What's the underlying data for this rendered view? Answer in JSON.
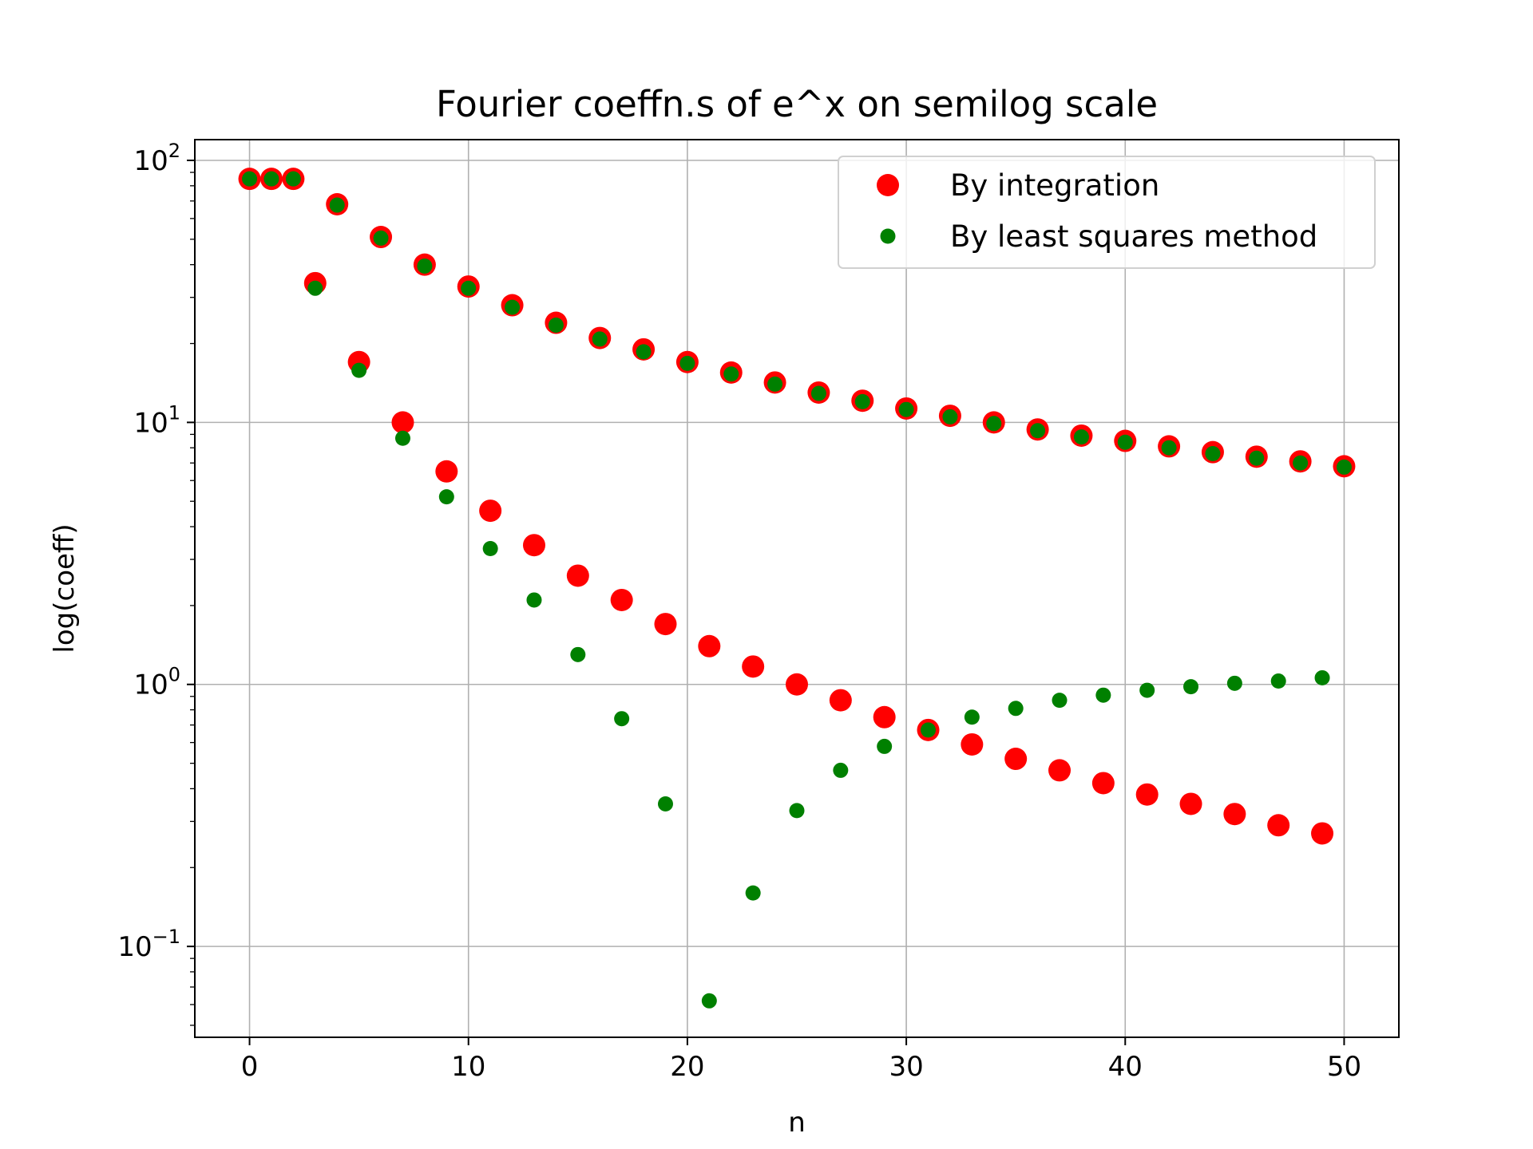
{
  "chart_data": {
    "type": "scatter",
    "title": "Fourier coeffn.s of e^x on semilog scale",
    "xlabel": "n",
    "ylabel": "log(coeff)",
    "yscale": "log",
    "xlim": [
      -2.5,
      52.5
    ],
    "ylim": [
      0.045,
      120
    ],
    "grid": true,
    "legend_position": "top-right",
    "x_ticks": [
      0,
      10,
      20,
      30,
      40,
      50
    ],
    "y_ticks": [
      {
        "value": 0.1,
        "base": "10",
        "exp": "−1"
      },
      {
        "value": 1,
        "base": "10",
        "exp": "0"
      },
      {
        "value": 10,
        "base": "10",
        "exp": "1"
      },
      {
        "value": 100,
        "base": "10",
        "exp": "2"
      }
    ],
    "series": [
      {
        "name": "By integration",
        "color": "#ff0000",
        "marker_size": "large",
        "points": [
          [
            0,
            85.0
          ],
          [
            1,
            85.0
          ],
          [
            2,
            85.0
          ],
          [
            3,
            34.0
          ],
          [
            4,
            68.0
          ],
          [
            5,
            17.0
          ],
          [
            6,
            51.0
          ],
          [
            7,
            10.0
          ],
          [
            8,
            40.0
          ],
          [
            9,
            6.5
          ],
          [
            10,
            33.0
          ],
          [
            11,
            4.6
          ],
          [
            12,
            28.0
          ],
          [
            13,
            3.4
          ],
          [
            14,
            24.0
          ],
          [
            15,
            2.6
          ],
          [
            16,
            21.0
          ],
          [
            17,
            2.1
          ],
          [
            18,
            19.0
          ],
          [
            19,
            1.7
          ],
          [
            20,
            17.0
          ],
          [
            21,
            1.4
          ],
          [
            22,
            15.5
          ],
          [
            23,
            1.17
          ],
          [
            24,
            14.2
          ],
          [
            25,
            1.0
          ],
          [
            26,
            13.0
          ],
          [
            27,
            0.87
          ],
          [
            28,
            12.1
          ],
          [
            29,
            0.75
          ],
          [
            30,
            11.3
          ],
          [
            31,
            0.67
          ],
          [
            32,
            10.6
          ],
          [
            33,
            0.59
          ],
          [
            34,
            10.0
          ],
          [
            35,
            0.52
          ],
          [
            36,
            9.4
          ],
          [
            37,
            0.47
          ],
          [
            38,
            8.9
          ],
          [
            39,
            0.42
          ],
          [
            40,
            8.5
          ],
          [
            41,
            0.38
          ],
          [
            42,
            8.1
          ],
          [
            43,
            0.35
          ],
          [
            44,
            7.7
          ],
          [
            45,
            0.32
          ],
          [
            46,
            7.4
          ],
          [
            47,
            0.29
          ],
          [
            48,
            7.1
          ],
          [
            49,
            0.27
          ],
          [
            50,
            6.8
          ]
        ]
      },
      {
        "name": "By least squares method",
        "color": "#008000",
        "marker_size": "small",
        "points": [
          [
            0,
            85.0
          ],
          [
            1,
            85.0
          ],
          [
            2,
            85.0
          ],
          [
            3,
            32.5
          ],
          [
            4,
            67.5
          ],
          [
            5,
            15.8
          ],
          [
            6,
            50.5
          ],
          [
            7,
            8.7
          ],
          [
            8,
            39.5
          ],
          [
            9,
            5.2
          ],
          [
            10,
            32.5
          ],
          [
            11,
            3.3
          ],
          [
            12,
            27.5
          ],
          [
            13,
            2.1
          ],
          [
            14,
            23.5
          ],
          [
            15,
            1.3
          ],
          [
            16,
            20.8
          ],
          [
            17,
            0.74
          ],
          [
            18,
            18.6
          ],
          [
            19,
            0.35
          ],
          [
            20,
            16.8
          ],
          [
            21,
            0.062
          ],
          [
            22,
            15.3
          ],
          [
            23,
            0.16
          ],
          [
            24,
            14.0
          ],
          [
            25,
            0.33
          ],
          [
            26,
            12.9
          ],
          [
            27,
            0.47
          ],
          [
            28,
            12.0
          ],
          [
            29,
            0.58
          ],
          [
            30,
            11.2
          ],
          [
            31,
            0.67
          ],
          [
            32,
            10.5
          ],
          [
            33,
            0.75
          ],
          [
            34,
            9.9
          ],
          [
            35,
            0.81
          ],
          [
            36,
            9.3
          ],
          [
            37,
            0.87
          ],
          [
            38,
            8.8
          ],
          [
            39,
            0.91
          ],
          [
            40,
            8.4
          ],
          [
            41,
            0.95
          ],
          [
            42,
            8.0
          ],
          [
            43,
            0.98
          ],
          [
            44,
            7.6
          ],
          [
            45,
            1.01
          ],
          [
            46,
            7.3
          ],
          [
            47,
            1.03
          ],
          [
            48,
            7.0
          ],
          [
            49,
            1.06
          ],
          [
            50,
            6.75
          ]
        ]
      }
    ]
  }
}
